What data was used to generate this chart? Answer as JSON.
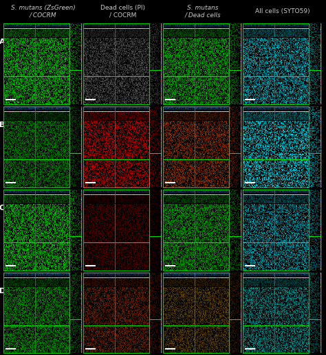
{
  "background_color": "#000000",
  "col_headers": [
    "S. mutans (ZsGreen)\n/ COCRM",
    "Dead cells (PI)\n/ COCRM",
    "S. mutans\n/ Dead cells",
    "All cells (SYTO59)"
  ],
  "row_labels": [
    "A",
    "B",
    "C",
    "D"
  ],
  "header_color": "#cccccc",
  "header_fontsize": 6.5,
  "rows": 4,
  "cols": 4,
  "cell_configs": [
    {
      "row": 0,
      "col": 0,
      "main_color": "#00cc00",
      "side_color": "#00aa00",
      "top_bg": "#1a1a2e",
      "top_line_color": "#4499ff",
      "green_bright": true
    },
    {
      "row": 0,
      "col": 1,
      "main_color": "#555555",
      "side_color": "#444444",
      "top_bg": "#1a1a2e",
      "top_line_color": "#5566aa",
      "green_bright": false
    },
    {
      "row": 0,
      "col": 2,
      "main_color": "#00bb00",
      "side_color": "#009900",
      "top_bg": "#1a1a2e",
      "top_line_color": "#4499ff",
      "green_bright": true
    },
    {
      "row": 0,
      "col": 3,
      "main_color": "#00bbcc",
      "side_color": "#009999",
      "top_bg": "#1a1a2e",
      "top_line_color": "#4499ff",
      "green_bright": false
    },
    {
      "row": 1,
      "col": 0,
      "main_color": "#008800",
      "side_color": "#006600",
      "top_bg": "#1a1a2e",
      "top_line_color": "#4499ff",
      "green_bright": true
    },
    {
      "row": 1,
      "col": 1,
      "main_color": "#cc0000",
      "side_color": "#880000",
      "top_bg": "#1a1a2e",
      "top_line_color": "#5566aa",
      "green_bright": false
    },
    {
      "row": 1,
      "col": 2,
      "main_color": "#993300",
      "side_color": "#772200",
      "top_bg": "#1a1a2e",
      "top_line_color": "#4499ff",
      "green_bright": false
    },
    {
      "row": 1,
      "col": 3,
      "main_color": "#00ddee",
      "side_color": "#00bbcc",
      "top_bg": "#1a1a2e",
      "top_line_color": "#4499ff",
      "green_bright": false
    },
    {
      "row": 2,
      "col": 0,
      "main_color": "#00cc00",
      "side_color": "#00aa00",
      "top_bg": "#1a1a2e",
      "top_line_color": "#4499ff",
      "green_bright": true
    },
    {
      "row": 2,
      "col": 1,
      "main_color": "#550000",
      "side_color": "#330000",
      "top_bg": "#1a1a2e",
      "top_line_color": "#5566aa",
      "green_bright": false
    },
    {
      "row": 2,
      "col": 2,
      "main_color": "#00aa00",
      "side_color": "#008800",
      "top_bg": "#1a1a2e",
      "top_line_color": "#4499ff",
      "green_bright": true
    },
    {
      "row": 2,
      "col": 3,
      "main_color": "#00aabb",
      "side_color": "#008899",
      "top_bg": "#1a1a2e",
      "top_line_color": "#4499ff",
      "green_bright": false
    },
    {
      "row": 3,
      "col": 0,
      "main_color": "#009900",
      "side_color": "#007700",
      "top_bg": "#1a1a2e",
      "top_line_color": "#4499ff",
      "green_bright": true
    },
    {
      "row": 3,
      "col": 1,
      "main_color": "#772200",
      "side_color": "#551100",
      "top_bg": "#1a1a2e",
      "top_line_color": "#5566aa",
      "green_bright": false
    },
    {
      "row": 3,
      "col": 2,
      "main_color": "#664400",
      "side_color": "#442200",
      "top_bg": "#1a1a2e",
      "top_line_color": "#4499ff",
      "green_bright": false
    },
    {
      "row": 3,
      "col": 3,
      "main_color": "#009999",
      "side_color": "#007777",
      "top_bg": "#1a1a2e",
      "top_line_color": "#4499ff",
      "green_bright": false
    }
  ]
}
